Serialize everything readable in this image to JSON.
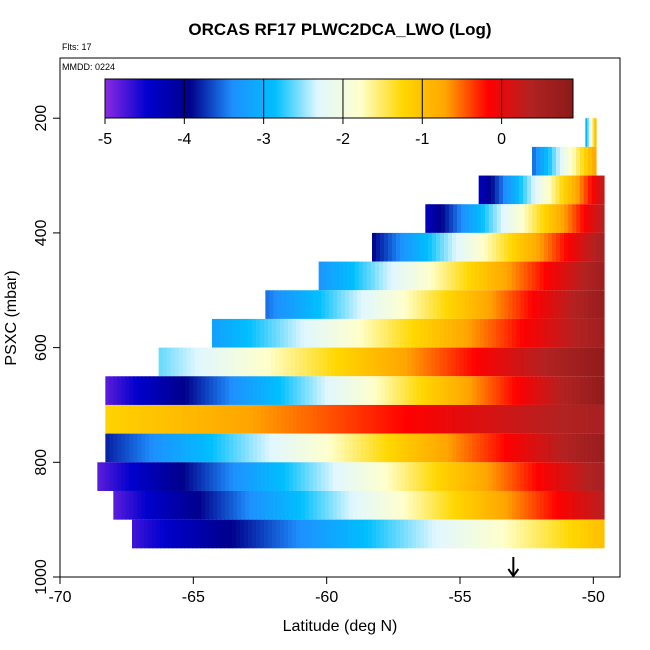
{
  "chart_data": {
    "type": "heatmap",
    "title": "ORCAS RF17 PLWC2DCA_LWO (Log)",
    "xlabel": "Latitude (deg N)",
    "ylabel": "PSXC (mbar)",
    "note_flights": "Flts: 17",
    "note_date": "MMDD: 0224",
    "xlim": [
      -70,
      -49
    ],
    "ylim": [
      1000,
      95
    ],
    "x_ticks": [
      -70,
      -65,
      -60,
      -55,
      -50
    ],
    "x_tick_labels": [
      "-70",
      "-65",
      "-60",
      "-55",
      "-50"
    ],
    "y_ticks": [
      200,
      400,
      600,
      800,
      1000
    ],
    "y_tick_labels": [
      "200",
      "400",
      "600",
      "800",
      "1000"
    ],
    "colorbar": {
      "range": [
        -5,
        0.9
      ],
      "ticks": [
        -5,
        -4,
        -3,
        -2,
        -1,
        0
      ],
      "tick_labels": [
        "-5",
        "-4",
        "-3",
        "-2",
        "-1",
        "0"
      ],
      "colors": [
        "#8a2be2",
        "#0000cd",
        "#00008b",
        "#1e90ff",
        "#00bfff",
        "#e0f7ff",
        "#ffffcc",
        "#ffd700",
        "#ffa500",
        "#ff0000",
        "#b22222",
        "#8b1a1a"
      ]
    },
    "bands": [
      {
        "p": 225,
        "lat0": -50.3,
        "lat1": -49.9,
        "v0": -3,
        "v1": -1
      },
      {
        "p": 275,
        "lat0": -52.3,
        "lat1": -49.9,
        "v0": -3.5,
        "v1": -0.8
      },
      {
        "p": 325,
        "lat0": -54.3,
        "lat1": -49.6,
        "v0": -4.3,
        "v1": 0.2
      },
      {
        "p": 375,
        "lat0": -56.3,
        "lat1": -49.6,
        "v0": -4.3,
        "v1": 0.3
      },
      {
        "p": 425,
        "lat0": -58.3,
        "lat1": -49.6,
        "v0": -3.9,
        "v1": 0.5
      },
      {
        "p": 475,
        "lat0": -60.3,
        "lat1": -49.6,
        "v0": -3.3,
        "v1": 0.6
      },
      {
        "p": 525,
        "lat0": -62.3,
        "lat1": -49.6,
        "v0": -3.5,
        "v1": 0.7
      },
      {
        "p": 575,
        "lat0": -64.3,
        "lat1": -49.6,
        "v0": -3.2,
        "v1": 0.6
      },
      {
        "p": 625,
        "lat0": -66.3,
        "lat1": -49.6,
        "v0": -2.6,
        "v1": 0.8
      },
      {
        "p": 675,
        "lat0": -68.3,
        "lat1": -49.6,
        "v0": -4.8,
        "v1": 0.8
      },
      {
        "p": 725,
        "lat0": -68.3,
        "lat1": -49.6,
        "v0": -1.2,
        "v1": 0.5
      },
      {
        "p": 775,
        "lat0": -68.3,
        "lat1": -49.6,
        "v0": -3.8,
        "v1": 0.7
      },
      {
        "p": 825,
        "lat0": -68.6,
        "lat1": -49.6,
        "v0": -4.8,
        "v1": 0.5
      },
      {
        "p": 875,
        "lat0": -68.0,
        "lat1": -49.6,
        "v0": -4.8,
        "v1": 0.3
      },
      {
        "p": 925,
        "lat0": -67.3,
        "lat1": -49.6,
        "v0": -4.7,
        "v1": -1.0
      }
    ],
    "marker": {
      "lat": -53,
      "label": "arrow"
    }
  }
}
